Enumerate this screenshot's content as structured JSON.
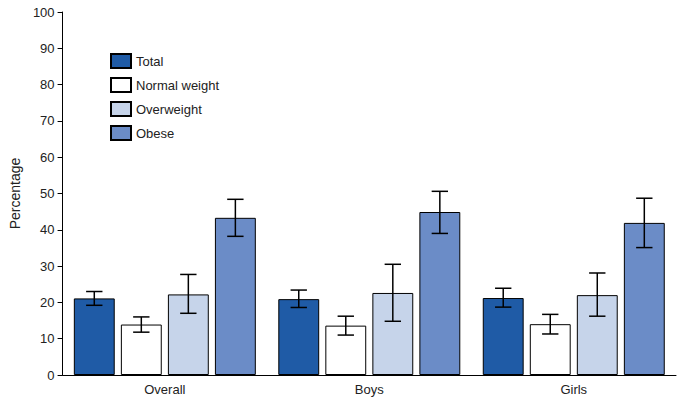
{
  "chart_data": {
    "type": "bar",
    "y_label": "Percentage",
    "categories": [
      "Overall",
      "Boys",
      "Girls"
    ],
    "series": [
      {
        "name": "Total",
        "color": "#1f5ba6",
        "values": [
          21.1,
          20.9,
          21.2
        ],
        "ci": [
          [
            19.2,
            23.0
          ],
          [
            18.6,
            23.4
          ],
          [
            18.7,
            23.9
          ]
        ]
      },
      {
        "name": "Normal weight",
        "color": "#ffffff",
        "values": [
          13.9,
          13.6,
          14.0
        ],
        "ci": [
          [
            11.8,
            16.0
          ],
          [
            11.0,
            16.2
          ],
          [
            11.3,
            16.7
          ]
        ]
      },
      {
        "name": "Overweight",
        "color": "#c6d4ea",
        "values": [
          22.2,
          22.6,
          22.0
        ],
        "ci": [
          [
            17.0,
            27.7
          ],
          [
            14.8,
            30.5
          ],
          [
            16.2,
            28.1
          ]
        ]
      },
      {
        "name": "Obese",
        "color": "#6b8cc7",
        "values": [
          43.3,
          44.9,
          41.9
        ],
        "ci": [
          [
            38.2,
            48.4
          ],
          [
            39.0,
            50.6
          ],
          [
            35.1,
            48.7
          ]
        ]
      }
    ],
    "ylim": [
      0,
      100
    ],
    "yticks": [
      0,
      10,
      20,
      30,
      40,
      50,
      60,
      70,
      80,
      90,
      100
    ],
    "grid": false,
    "legend": "top-left"
  }
}
